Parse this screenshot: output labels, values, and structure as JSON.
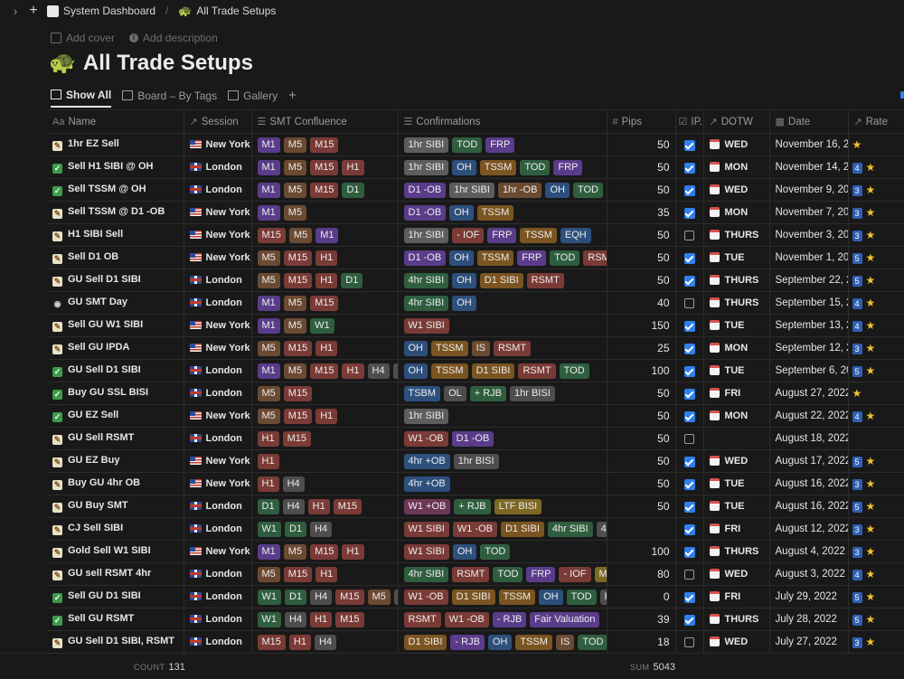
{
  "breadcrumb": {
    "workspace": "System Dashboard",
    "page": "All Trade Setups"
  },
  "page_meta": {
    "add_cover": "Add cover",
    "add_description": "Add description"
  },
  "page_title": "All Trade Setups",
  "views": {
    "show_all": "Show All",
    "board": "Board – By Tags",
    "gallery": "Gallery"
  },
  "columns": {
    "name": "Name",
    "session": "Session",
    "smt": "SMT Confluence",
    "confirmations": "Confirmations",
    "pips": "Pips",
    "ip": "IP...",
    "dotw": "DOTW",
    "date": "Date",
    "rate": "Rate"
  },
  "colors": {
    "M1": "purple",
    "M5": "brown",
    "M15": "red",
    "H1": "red",
    "H4": "gray",
    "D1": "green",
    "W1": "green",
    "1hr SIBI": "lgray",
    "TOD": "green",
    "FRP": "purple",
    "OH": "blue",
    "TSSM": "orange",
    "D1 -OB": "purple",
    "1hr -OB": "brown",
    "- IOF": "red",
    "EQH": "blue",
    "RSMT": "red",
    "4hr SIBI": "green",
    "D1 SIBI": "orange",
    "W1 SIBI": "red",
    "IS": "brown",
    "TSBM": "blue",
    "OL": "gray",
    "+ RJB": "green",
    "1hr BISI": "gray",
    "W1 -OB": "red",
    "4hr +OB": "blue",
    "W1 +OB": "pink",
    "LTF BISI": "yellow",
    "W1 -OB ": "red",
    "Mitiga": "yellow",
    "- RJB": "purple",
    "Fair Valuation": "purple",
    "4hr -O": "gray"
  },
  "rows": [
    {
      "icon": "memo",
      "name": "1hr EZ Sell",
      "session": "New York",
      "flag": "us",
      "smt": [
        "M1",
        "M5",
        "M15"
      ],
      "conf": [
        "1hr SIBI",
        "TOD",
        "FRP"
      ],
      "pips": "50",
      "ip": true,
      "dotw": "WED",
      "date": "November 16, 20",
      "rate": "",
      "stars": 1
    },
    {
      "icon": "check",
      "name": "Sell H1 SIBI @ OH",
      "session": "London",
      "flag": "uk",
      "smt": [
        "M1",
        "M5",
        "M15",
        "H1"
      ],
      "conf": [
        "1hr SIBI",
        "OH",
        "TSSM",
        "TOD",
        "FRP"
      ],
      "pips": "50",
      "ip": true,
      "dotw": "MON",
      "date": "November 14, 20",
      "rate": "4",
      "stars": 1
    },
    {
      "icon": "check",
      "name": "Sell TSSM @ OH",
      "session": "London",
      "flag": "uk",
      "smt": [
        "M1",
        "M5",
        "M15",
        "D1"
      ],
      "conf": [
        "D1 -OB",
        "1hr SIBI",
        "1hr -OB",
        "OH",
        "TOD",
        "FR"
      ],
      "pips": "50",
      "ip": true,
      "dotw": "WED",
      "date": "November 9, 202",
      "rate": "3",
      "stars": 1
    },
    {
      "icon": "memo",
      "name": "Sell TSSM @ D1 -OB",
      "session": "New York",
      "flag": "us",
      "smt": [
        "M1",
        "M5"
      ],
      "conf": [
        "D1 -OB",
        "OH",
        "TSSM"
      ],
      "pips": "35",
      "ip": true,
      "dotw": "MON",
      "date": "November 7, 202",
      "rate": "3",
      "stars": 1
    },
    {
      "icon": "memo",
      "name": "H1 SIBI Sell",
      "session": "New York",
      "flag": "us",
      "smt": [
        "M15",
        "M5",
        "M1"
      ],
      "conf": [
        "1hr SIBI",
        "- IOF",
        "FRP",
        "TSSM",
        "EQH"
      ],
      "pips": "50",
      "ip": false,
      "dotw": "THURS",
      "date": "November 3, 202",
      "rate": "3",
      "stars": 1
    },
    {
      "icon": "memo",
      "name": "Sell D1 OB",
      "session": "New York",
      "flag": "us",
      "smt": [
        "M5",
        "M15",
        "H1"
      ],
      "conf": [
        "D1 -OB",
        "OH",
        "TSSM",
        "FRP",
        "TOD",
        "RSMT"
      ],
      "pips": "50",
      "ip": true,
      "dotw": "TUE",
      "date": "November 1, 202",
      "rate": "5",
      "stars": 1
    },
    {
      "icon": "memo",
      "name": "GU Sell D1 SIBI",
      "session": "London",
      "flag": "uk",
      "smt": [
        "M5",
        "M15",
        "H1",
        "D1"
      ],
      "conf": [
        "4hr SIBI",
        "OH",
        "D1 SIBI",
        "RSMT"
      ],
      "pips": "50",
      "ip": true,
      "dotw": "THURS",
      "date": "September 22, 20",
      "rate": "5",
      "stars": 1
    },
    {
      "icon": "eye",
      "name": "GU SMT Day",
      "session": "London",
      "flag": "uk",
      "smt": [
        "M1",
        "M5",
        "M15"
      ],
      "conf": [
        "4hr SIBI",
        "OH"
      ],
      "pips": "40",
      "ip": false,
      "dotw": "THURS",
      "date": "September 15, 20",
      "rate": "4",
      "stars": 1
    },
    {
      "icon": "memo",
      "name": "Sell GU W1 SIBI",
      "session": "New York",
      "flag": "us",
      "smt": [
        "M1",
        "M5",
        "W1"
      ],
      "conf": [
        "W1 SIBI"
      ],
      "pips": "150",
      "ip": true,
      "dotw": "TUE",
      "date": "September 13, 20",
      "rate": "4",
      "stars": 1
    },
    {
      "icon": "memo",
      "name": "Sell GU IPDA",
      "session": "New York",
      "flag": "us",
      "smt": [
        "M5",
        "M15",
        "H1"
      ],
      "conf": [
        "OH",
        "TSSM",
        "IS",
        "RSMT"
      ],
      "pips": "25",
      "ip": true,
      "dotw": "MON",
      "date": "September 12, 20",
      "rate": "3",
      "stars": 1
    },
    {
      "icon": "check",
      "name": "GU Sell D1 SIBI",
      "session": "London",
      "flag": "uk",
      "smt": [
        "M1",
        "M5",
        "M15",
        "H1",
        "H4",
        "D"
      ],
      "conf": [
        "OH",
        "TSSM",
        "D1 SIBI",
        "RSMT",
        "TOD"
      ],
      "pips": "100",
      "ip": true,
      "dotw": "TUE",
      "date": "September 6, 202",
      "rate": "5",
      "stars": 1
    },
    {
      "icon": "check",
      "name": "Buy GU SSL BISI",
      "session": "London",
      "flag": "uk",
      "smt": [
        "M5",
        "M15"
      ],
      "conf": [
        "TSBM",
        "OL",
        "+ RJB",
        "1hr BISI"
      ],
      "pips": "50",
      "ip": true,
      "dotw": "FRI",
      "date": "August 27, 2022",
      "rate": "",
      "stars": 1
    },
    {
      "icon": "check",
      "name": "GU EZ Sell",
      "session": "New York",
      "flag": "us",
      "smt": [
        "M5",
        "M15",
        "H1"
      ],
      "conf": [
        "1hr SIBI"
      ],
      "pips": "50",
      "ip": true,
      "dotw": "MON",
      "date": "August 22, 2022",
      "rate": "4",
      "stars": 1
    },
    {
      "icon": "memo",
      "name": "GU Sell RSMT",
      "session": "London",
      "flag": "uk",
      "smt": [
        "H1",
        "M15"
      ],
      "conf": [
        "W1 -OB",
        "D1 -OB"
      ],
      "pips": "50",
      "ip": false,
      "dotw": "",
      "date": "August 18, 2022",
      "rate": "",
      "stars": 0
    },
    {
      "icon": "memo",
      "name": "GU EZ Buy",
      "session": "New York",
      "flag": "us",
      "smt": [
        "H1"
      ],
      "conf": [
        "4hr +OB",
        "1hr BISI"
      ],
      "pips": "50",
      "ip": true,
      "dotw": "WED",
      "date": "August 17, 2022",
      "rate": "5",
      "stars": 1
    },
    {
      "icon": "memo",
      "name": "Buy GU 4hr OB",
      "session": "New York",
      "flag": "us",
      "smt": [
        "H1",
        "H4"
      ],
      "conf": [
        "4hr +OB"
      ],
      "pips": "50",
      "ip": true,
      "dotw": "TUE",
      "date": "August 16, 2022",
      "rate": "3",
      "stars": 1
    },
    {
      "icon": "memo",
      "name": "GU Buy SMT",
      "session": "London",
      "flag": "uk",
      "smt": [
        "D1",
        "H4",
        "H1",
        "M15"
      ],
      "conf": [
        "W1 +OB",
        "+ RJB",
        "LTF BISI"
      ],
      "pips": "50",
      "ip": true,
      "dotw": "TUE",
      "date": "August 16, 2022",
      "rate": "5",
      "stars": 1
    },
    {
      "icon": "memo",
      "name": "CJ Sell SIBI",
      "session": "London",
      "flag": "uk",
      "smt": [
        "W1",
        "D1",
        "H4"
      ],
      "conf": [
        "W1 SIBI",
        "W1 -OB",
        "D1 SIBI",
        "4hr SIBI",
        "4hr -O"
      ],
      "pips": "",
      "ip": true,
      "dotw": "FRI",
      "date": "August 12, 2022",
      "rate": "3",
      "stars": 1
    },
    {
      "icon": "memo",
      "name": "Gold Sell W1 SIBI",
      "session": "New York",
      "flag": "us",
      "smt": [
        "M1",
        "M5",
        "M15",
        "H1"
      ],
      "conf": [
        "W1 SIBI",
        "OH",
        "TOD"
      ],
      "pips": "100",
      "ip": true,
      "dotw": "THURS",
      "date": "August 4, 2022",
      "rate": "3",
      "stars": 1
    },
    {
      "icon": "memo",
      "name": "GU sell RSMT 4hr",
      "session": "London",
      "flag": "uk",
      "smt": [
        "M5",
        "M15",
        "H1"
      ],
      "conf": [
        "4hr SIBI",
        "RSMT",
        "TOD",
        "FRP",
        "- IOF",
        "Mitiga"
      ],
      "pips": "80",
      "ip": false,
      "dotw": "WED",
      "date": "August 3, 2022",
      "rate": "4",
      "stars": 1
    },
    {
      "icon": "check",
      "name": "Sell GU D1 SIBI",
      "session": "London",
      "flag": "uk",
      "smt": [
        "W1",
        "D1",
        "H4",
        "M15",
        "M5",
        "M"
      ],
      "conf": [
        "W1 -OB",
        "D1 SIBI",
        "TSSM",
        "OH",
        "TOD",
        "RSM"
      ],
      "pips": "0",
      "ip": true,
      "dotw": "FRI",
      "date": "July 29, 2022",
      "rate": "5",
      "stars": 1
    },
    {
      "icon": "check",
      "name": "Sell GU RSMT",
      "session": "London",
      "flag": "uk",
      "smt": [
        "W1",
        "H4",
        "H1",
        "M15"
      ],
      "conf": [
        "RSMT",
        "W1 -OB",
        "- RJB",
        "Fair Valuation"
      ],
      "pips": "39",
      "ip": true,
      "dotw": "THURS",
      "date": "July 28, 2022",
      "rate": "5",
      "stars": 1
    },
    {
      "icon": "memo",
      "name": "GU Sell D1 SIBI, RSMT",
      "session": "London",
      "flag": "uk",
      "smt": [
        "M15",
        "H1",
        "H4"
      ],
      "conf": [
        "D1 SIBI",
        "- RJB",
        "OH",
        "TSSM",
        "IS",
        "TOD"
      ],
      "pips": "18",
      "ip": false,
      "dotw": "WED",
      "date": "July 27, 2022",
      "rate": "3",
      "stars": 1
    }
  ],
  "footer": {
    "count_label": "COUNT",
    "count_value": "131",
    "sum_label": "SUM",
    "sum_value": "5043"
  }
}
